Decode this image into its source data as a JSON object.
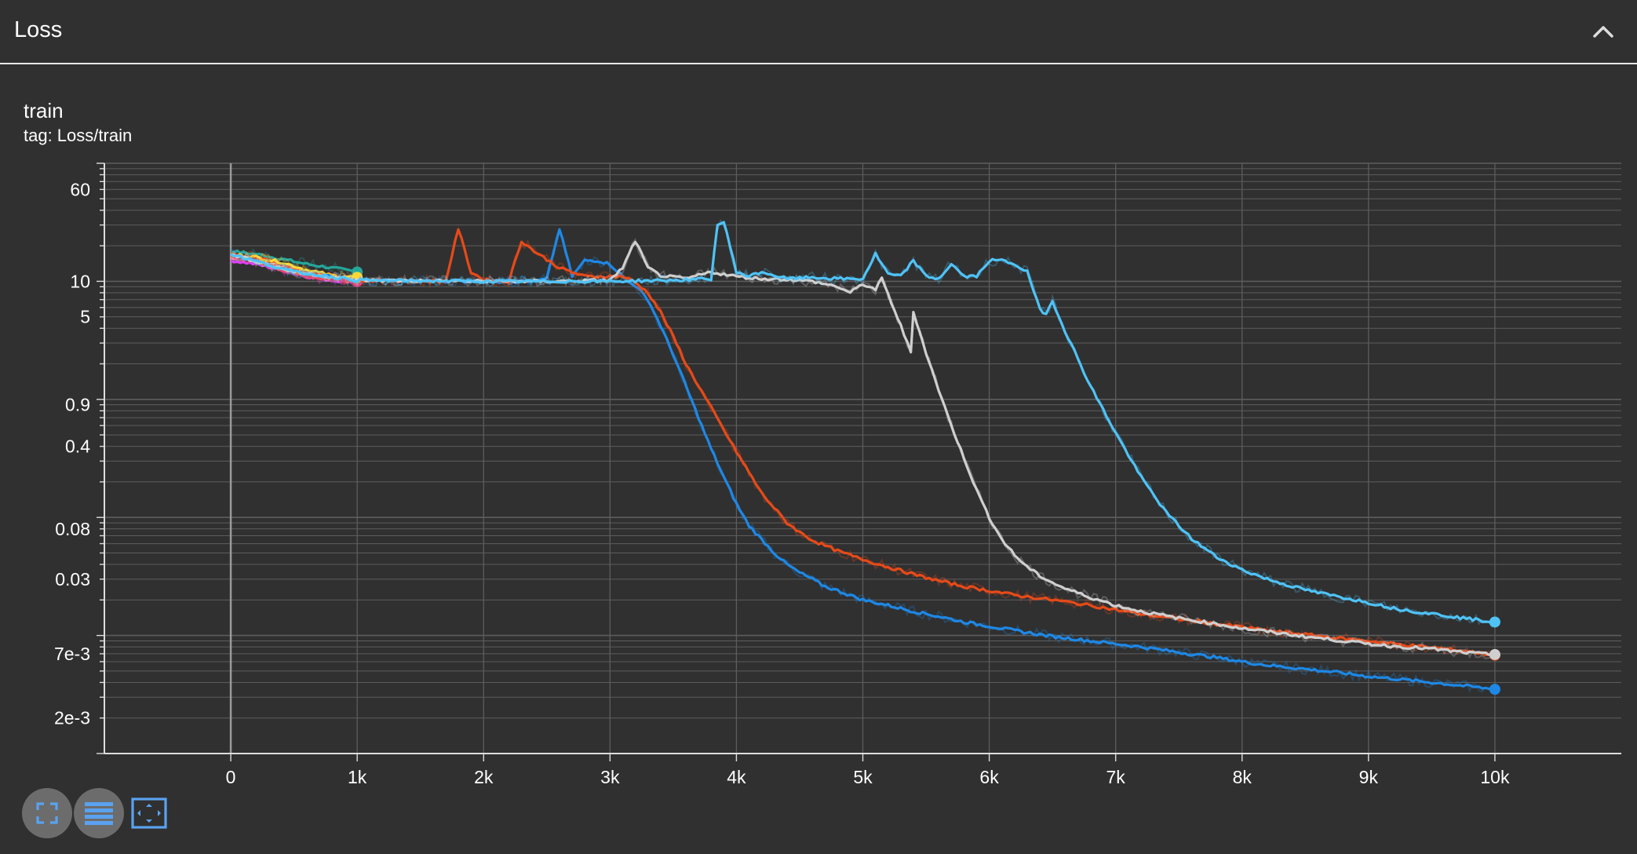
{
  "section": {
    "title": "Loss"
  },
  "card": {
    "title": "train",
    "tag": "tag: Loss/train"
  },
  "toolbar": {
    "fullscreen_icon": "fullscreen-icon",
    "legend_icon": "list-icon",
    "fit_domain_icon": "fit-to-data-icon"
  },
  "colors": {
    "background": "#303030",
    "grid": "#5d5d5d",
    "axis": "#dddddd",
    "toolbar_accent": "#5aa2f0"
  },
  "chart_data": {
    "type": "line",
    "title": "",
    "xlabel": "",
    "ylabel": "",
    "y_scale": "log",
    "xlim": [
      -1000,
      11000
    ],
    "ylim": [
      0.001,
      100
    ],
    "xticks": [
      "0",
      "1k",
      "2k",
      "3k",
      "4k",
      "5k",
      "6k",
      "7k",
      "8k",
      "9k",
      "10k"
    ],
    "xtick_values": [
      0,
      1000,
      2000,
      3000,
      4000,
      5000,
      6000,
      7000,
      8000,
      9000,
      10000
    ],
    "yticks": [
      "60",
      "10",
      "5",
      "0.9",
      "0.4",
      "0.08",
      "0.03",
      "7e-3",
      "2e-3"
    ],
    "ytick_values": [
      60,
      10,
      5,
      0.9,
      0.4,
      0.08,
      0.03,
      0.007,
      0.002
    ],
    "grid": true,
    "legend": "none",
    "series": [
      {
        "color": "#26a69a",
        "x": [
          0,
          200,
          400,
          600,
          800,
          1000
        ],
        "y": [
          18,
          17,
          15.5,
          14,
          13,
          12
        ]
      },
      {
        "color": "#e8e8e8",
        "x": [
          0,
          200,
          400,
          600,
          800,
          1000
        ],
        "y": [
          16,
          15,
          13.5,
          12,
          11,
          10.5
        ]
      },
      {
        "color": "#e040fb",
        "x": [
          0,
          200,
          400,
          600,
          800,
          1000
        ],
        "y": [
          15,
          14,
          12.5,
          11,
          10.2,
          10
        ]
      },
      {
        "color": "#ec407a",
        "x": [
          0,
          200,
          400,
          600,
          800,
          1000
        ],
        "y": [
          16,
          15,
          12.5,
          11,
          10.3,
          10
        ]
      },
      {
        "color": "#f4511e",
        "x": [
          0,
          200,
          400,
          600,
          800,
          1000
        ],
        "y": [
          17,
          16,
          14,
          12,
          11,
          10.6
        ]
      },
      {
        "color": "#fdd835",
        "x": [
          0,
          200,
          400,
          600,
          800,
          1000
        ],
        "y": [
          17,
          16,
          14.5,
          12.5,
          11.2,
          10.8
        ]
      },
      {
        "color": "#1e88e5",
        "x": [
          0,
          500,
          1000,
          1500,
          2000,
          2400,
          2500,
          2600,
          2700,
          2800,
          2900,
          3000,
          3100,
          3200,
          3300,
          3400,
          3500,
          3600,
          3700,
          3800,
          3900,
          4000,
          4100,
          4200,
          4300,
          4400,
          4500,
          4600,
          4700,
          4800,
          5000,
          5200,
          5400,
          5600,
          5800,
          6000,
          6200,
          6500,
          6800,
          7000,
          7200,
          7500,
          7800,
          8000,
          8200,
          8500,
          8800,
          9000,
          9200,
          9500,
          9800,
          10000
        ],
        "y": [
          17,
          12,
          10.2,
          10.1,
          10,
          10,
          10.5,
          28,
          11,
          15,
          15,
          14,
          11,
          9.2,
          7,
          4.2,
          2.4,
          1.3,
          0.7,
          0.38,
          0.22,
          0.13,
          0.085,
          0.065,
          0.05,
          0.04,
          0.034,
          0.03,
          0.026,
          0.024,
          0.02,
          0.018,
          0.016,
          0.0145,
          0.013,
          0.012,
          0.011,
          0.0098,
          0.009,
          0.0085,
          0.008,
          0.0072,
          0.0065,
          0.006,
          0.0056,
          0.0052,
          0.0048,
          0.0045,
          0.0043,
          0.004,
          0.0037,
          0.0035
        ]
      },
      {
        "color": "#e64a19",
        "x": [
          0,
          500,
          1000,
          1500,
          1700,
          1800,
          1900,
          2000,
          2200,
          2300,
          2400,
          2600,
          2800,
          3000,
          3100,
          3200,
          3300,
          3400,
          3500,
          3600,
          3700,
          3800,
          3900,
          4000,
          4100,
          4200,
          4300,
          4400,
          4500,
          4600,
          4800,
          5000,
          5200,
          5400,
          5600,
          5800,
          6000,
          6200,
          6500,
          6800,
          7000,
          7200,
          7500,
          7800,
          8000,
          8200,
          8500,
          8800,
          9000,
          9200,
          9500,
          9800,
          10000
        ],
        "y": [
          17,
          12,
          10.2,
          10.1,
          10,
          28,
          12,
          10.3,
          10,
          22,
          18,
          13,
          11,
          11,
          11,
          9.8,
          8,
          5.5,
          3.4,
          2,
          1.3,
          0.85,
          0.55,
          0.36,
          0.24,
          0.16,
          0.12,
          0.09,
          0.075,
          0.064,
          0.052,
          0.044,
          0.038,
          0.033,
          0.029,
          0.026,
          0.024,
          0.022,
          0.02,
          0.018,
          0.0165,
          0.0152,
          0.0138,
          0.0125,
          0.0118,
          0.011,
          0.0102,
          0.0094,
          0.009,
          0.0085,
          0.0079,
          0.0073,
          0.0068
        ]
      },
      {
        "color": "#cfcfcf",
        "x": [
          0,
          500,
          1000,
          1500,
          2000,
          2500,
          3000,
          3100,
          3200,
          3300,
          3400,
          3600,
          3800,
          4000,
          4200,
          4400,
          4600,
          4800,
          4900,
          5000,
          5100,
          5150,
          5300,
          5380,
          5400,
          5500,
          5600,
          5700,
          5800,
          5900,
          6000,
          6100,
          6200,
          6300,
          6400,
          6500,
          6600,
          6800,
          7000,
          7200,
          7500,
          7800,
          8000,
          8200,
          8500,
          8800,
          9000,
          9200,
          9500,
          9800,
          10000
        ],
        "y": [
          17,
          12,
          10.2,
          10.1,
          10,
          10,
          10.2,
          13,
          22,
          13,
          11.2,
          10.5,
          12,
          11,
          10.5,
          10.4,
          10,
          9,
          8,
          9.5,
          8.5,
          10.5,
          4.2,
          2.5,
          5.5,
          2.5,
          1.2,
          0.6,
          0.32,
          0.17,
          0.1,
          0.065,
          0.048,
          0.038,
          0.032,
          0.028,
          0.025,
          0.021,
          0.018,
          0.016,
          0.014,
          0.0125,
          0.0115,
          0.0108,
          0.0098,
          0.009,
          0.0085,
          0.0081,
          0.0077,
          0.0071,
          0.0069
        ]
      },
      {
        "color": "#4fc3f7",
        "x": [
          0,
          500,
          1000,
          1500,
          2000,
          2500,
          3000,
          3500,
          3800,
          3850,
          3900,
          4000,
          4100,
          4200,
          4400,
          4600,
          4800,
          5000,
          5100,
          5200,
          5300,
          5400,
          5500,
          5600,
          5700,
          5800,
          5900,
          6000,
          6100,
          6200,
          6300,
          6400,
          6450,
          6500,
          6600,
          6800,
          7000,
          7200,
          7400,
          7600,
          7800,
          8000,
          8200,
          8400,
          8600,
          8800,
          9000,
          9200,
          9400,
          9600,
          9800,
          10000
        ],
        "y": [
          17,
          12,
          10.2,
          10.1,
          10,
          10,
          10,
          10.2,
          10.5,
          30,
          32,
          12,
          11,
          12,
          10.5,
          10.8,
          10.5,
          10.5,
          17,
          11.5,
          11,
          15,
          11,
          10.5,
          14,
          11,
          11,
          15,
          15,
          14,
          12,
          5.8,
          5.3,
          6.8,
          3.8,
          1.3,
          0.52,
          0.22,
          0.11,
          0.066,
          0.046,
          0.036,
          0.03,
          0.026,
          0.023,
          0.021,
          0.019,
          0.017,
          0.0158,
          0.0148,
          0.0138,
          0.013
        ]
      }
    ]
  }
}
